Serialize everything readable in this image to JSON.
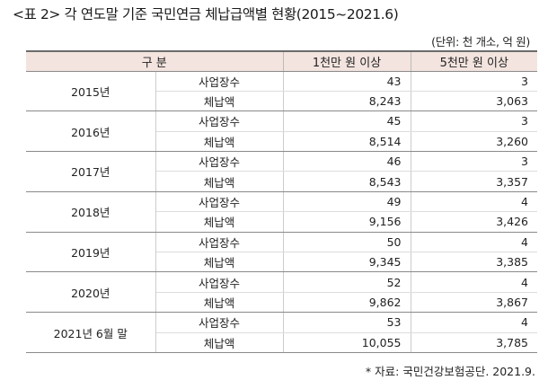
{
  "title": "<표 2> 각 연도말 기준 국민연금 체납급액별 현황(2015~2021.6)",
  "unit_note": "(단위: 천 개소, 억 원)",
  "header": {
    "category": "구 분",
    "col_a": "1천만 원 이상",
    "col_b": "5천만 원 이상"
  },
  "rows": [
    {
      "year": "2015년",
      "items": [
        {
          "label": "사업장수",
          "a": "43",
          "b": "3"
        },
        {
          "label": "체납액",
          "a": "8,243",
          "b": "3,063"
        }
      ]
    },
    {
      "year": "2016년",
      "items": [
        {
          "label": "사업장수",
          "a": "45",
          "b": "3"
        },
        {
          "label": "체납액",
          "a": "8,514",
          "b": "3,260"
        }
      ]
    },
    {
      "year": "2017년",
      "items": [
        {
          "label": "사업장수",
          "a": "46",
          "b": "3"
        },
        {
          "label": "체납액",
          "a": "8,543",
          "b": "3,357"
        }
      ]
    },
    {
      "year": "2018년",
      "items": [
        {
          "label": "사업장수",
          "a": "49",
          "b": "4"
        },
        {
          "label": "체납액",
          "a": "9,156",
          "b": "3,426"
        }
      ]
    },
    {
      "year": "2019년",
      "items": [
        {
          "label": "사업장수",
          "a": "50",
          "b": "4"
        },
        {
          "label": "체납액",
          "a": "9,345",
          "b": "3,385"
        }
      ]
    },
    {
      "year": "2020년",
      "items": [
        {
          "label": "사업장수",
          "a": "52",
          "b": "4"
        },
        {
          "label": "체납액",
          "a": "9,862",
          "b": "3,867"
        }
      ]
    },
    {
      "year": "2021년 6월 말",
      "items": [
        {
          "label": "사업장수",
          "a": "53",
          "b": "4"
        },
        {
          "label": "체납액",
          "a": "10,055",
          "b": "3,785"
        }
      ]
    }
  ],
  "source": "* 자료: 국민건강보험공단. 2021.9."
}
